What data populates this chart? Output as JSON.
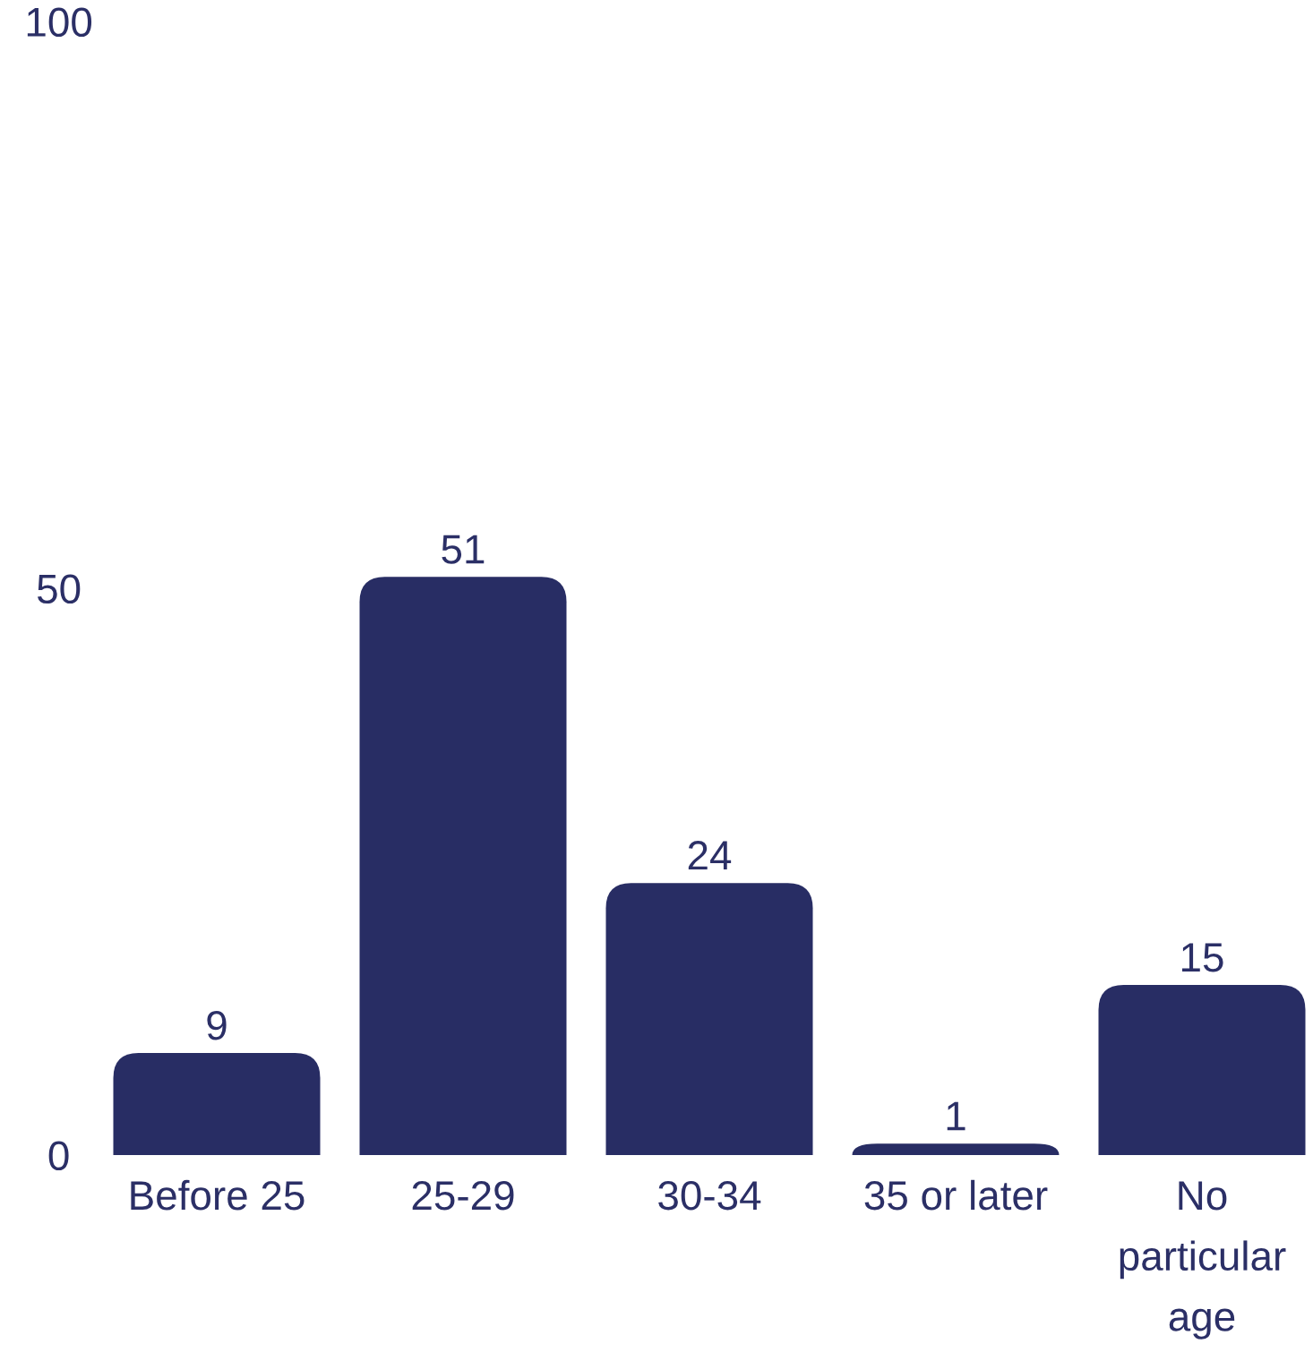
{
  "chart_data": {
    "type": "bar",
    "categories": [
      "Before 25",
      "25-29",
      "30-34",
      "35 or later",
      "No particular age"
    ],
    "values": [
      9,
      51,
      24,
      1,
      15
    ],
    "color": "#282d64",
    "ylim": [
      0,
      100
    ],
    "yticks": [
      0,
      50,
      100
    ],
    "data_labels": true
  }
}
